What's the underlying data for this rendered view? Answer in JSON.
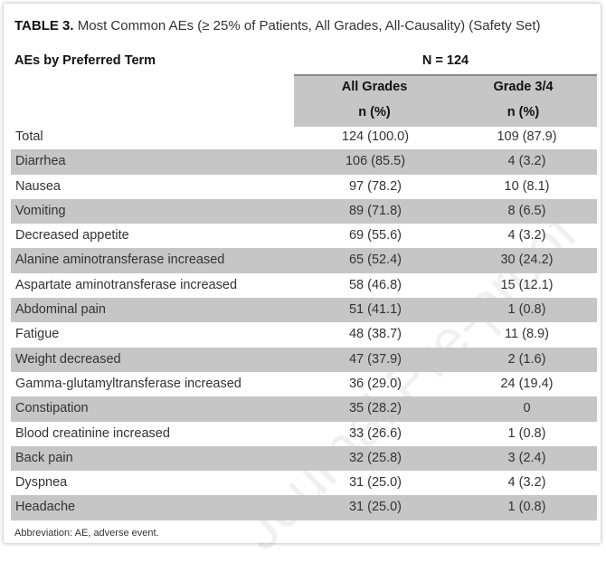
{
  "table": {
    "title_prefix": "TABLE 3.",
    "title_rest": " Most Common AEs (≥ 25% of Patients, All Grades, All-Causality) (Safety Set)",
    "row_header": "AEs by Preferred Term",
    "group_header": "N = 124",
    "columns": [
      {
        "label": "All Grades",
        "sub": "n (%)"
      },
      {
        "label": "Grade 3/4",
        "sub": "n (%)"
      }
    ],
    "shade_color": "#c6c6c6",
    "rows": [
      {
        "term": "Total",
        "all": "124 (100.0)",
        "g34": "109 (87.9)"
      },
      {
        "term": "Diarrhea",
        "all": "106 (85.5)",
        "g34": "4 (3.2)"
      },
      {
        "term": "Nausea",
        "all": "97 (78.2)",
        "g34": "10 (8.1)"
      },
      {
        "term": "Vomiting",
        "all": "89 (71.8)",
        "g34": "8 (6.5)"
      },
      {
        "term": "Decreased appetite",
        "all": "69 (55.6)",
        "g34": "4 (3.2)"
      },
      {
        "term": "Alanine aminotransferase increased",
        "all": "65 (52.4)",
        "g34": "30 (24.2)"
      },
      {
        "term": "Aspartate aminotransferase increased",
        "all": "58 (46.8)",
        "g34": "15 (12.1)"
      },
      {
        "term": "Abdominal pain",
        "all": "51 (41.1)",
        "g34": "1 (0.8)"
      },
      {
        "term": "Fatigue",
        "all": "48 (38.7)",
        "g34": "11 (8.9)"
      },
      {
        "term": "Weight decreased",
        "all": "47 (37.9)",
        "g34": "2 (1.6)"
      },
      {
        "term": "Gamma-glutamyltransferase increased",
        "all": "36 (29.0)",
        "g34": "24 (19.4)"
      },
      {
        "term": "Constipation",
        "all": "35 (28.2)",
        "g34": "0"
      },
      {
        "term": "Blood creatinine increased",
        "all": "33 (26.6)",
        "g34": "1 (0.8)"
      },
      {
        "term": "Back pain",
        "all": "32 (25.8)",
        "g34": "3 (2.4)"
      },
      {
        "term": "Dyspnea",
        "all": "31 (25.0)",
        "g34": "4 (3.2)"
      },
      {
        "term": "Headache",
        "all": "31 (25.0)",
        "g34": "1 (0.8)"
      }
    ],
    "footnote": "Abbreviation: AE, adverse event."
  },
  "watermark": "Journal Pre-proof"
}
